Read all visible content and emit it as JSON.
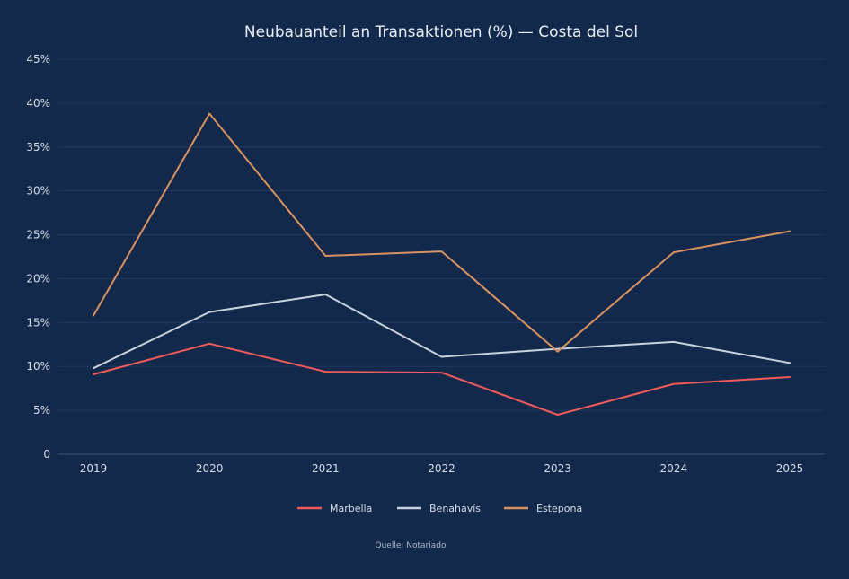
{
  "chart_data": {
    "type": "line",
    "title": "Neubauanteil an Transaktionen (%) — Costa del Sol",
    "xlabel": "",
    "ylabel": "",
    "categories": [
      "2019",
      "2020",
      "2021",
      "2022",
      "2023",
      "2024",
      "2025"
    ],
    "ylim": [
      0,
      45
    ],
    "yticks": [
      0,
      5,
      10,
      15,
      20,
      25,
      30,
      35,
      40,
      45
    ],
    "ytick_labels": [
      "0",
      "5%",
      "10%",
      "15%",
      "20%",
      "25%",
      "30%",
      "35%",
      "40%",
      "45%"
    ],
    "grid": true,
    "legend_position": "bottom",
    "series": [
      {
        "name": "Marbella",
        "color": "#f05a5a",
        "values": [
          9.1,
          12.6,
          9.4,
          9.3,
          4.5,
          8.0,
          8.8
        ]
      },
      {
        "name": "Benahavís",
        "color": "#c9d1de",
        "values": [
          9.8,
          16.2,
          18.2,
          11.1,
          12.0,
          12.8,
          10.4
        ]
      },
      {
        "name": "Estepona",
        "color": "#d9925f",
        "values": [
          15.8,
          38.8,
          22.6,
          23.1,
          11.7,
          23.0,
          25.4
        ]
      }
    ],
    "source": "Quelle: Notariado"
  }
}
